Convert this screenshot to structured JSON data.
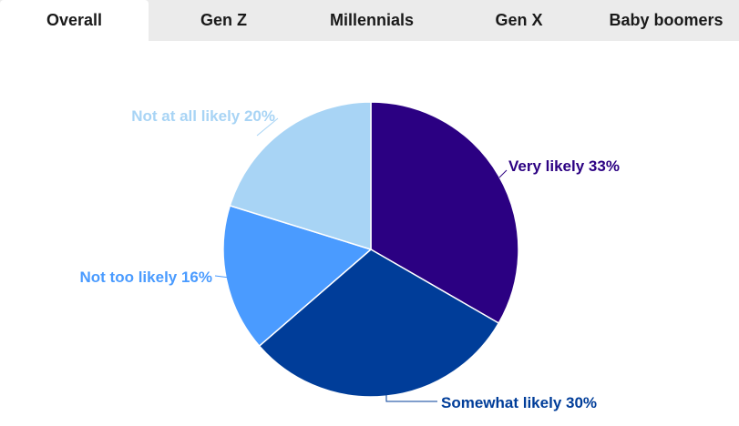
{
  "tabs": [
    {
      "label": "Overall",
      "active": true
    },
    {
      "label": "Gen Z",
      "active": false
    },
    {
      "label": "Millennials",
      "active": false
    },
    {
      "label": "Gen X",
      "active": false
    },
    {
      "label": "Baby boomers",
      "active": false
    }
  ],
  "chart_data": {
    "type": "pie",
    "slices": [
      {
        "label": "Very likely",
        "value": 33,
        "color": "#2b0082"
      },
      {
        "label": "Somewhat likely",
        "value": 30,
        "color": "#003d99"
      },
      {
        "label": "Not too likely",
        "value": 16,
        "color": "#4a9bff"
      },
      {
        "label": "Not at all likely",
        "value": 20,
        "color": "#a8d4f5"
      }
    ],
    "value_suffix": "%",
    "start": "12 o'clock",
    "direction": "clockwise"
  }
}
